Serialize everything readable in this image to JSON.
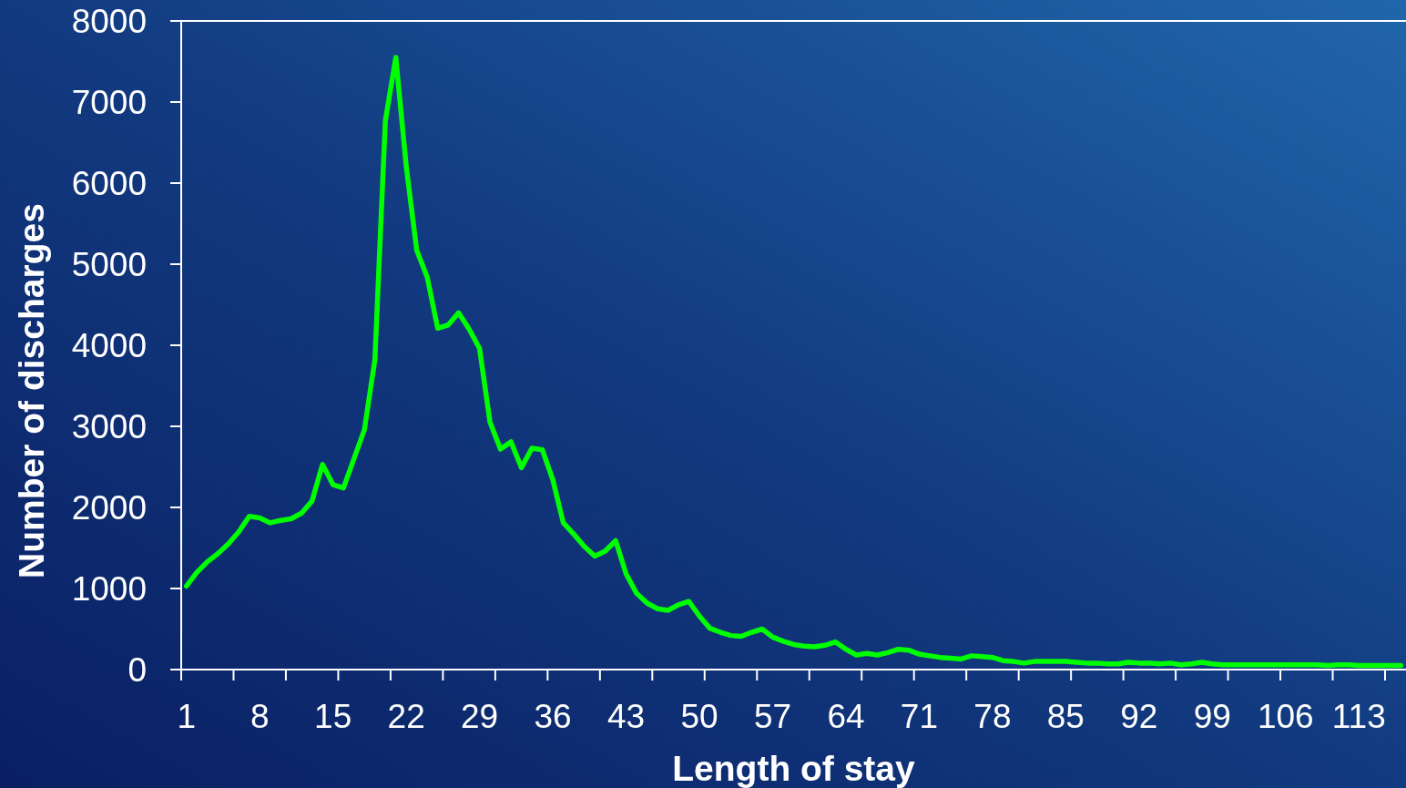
{
  "chart_data": {
    "type": "line",
    "xlabel": "Length of stay",
    "ylabel": "Number of discharges",
    "categories": [
      "1",
      null,
      null,
      null,
      null,
      null,
      null,
      "8",
      null,
      null,
      null,
      null,
      null,
      null,
      "15",
      null,
      null,
      null,
      null,
      null,
      null,
      "22",
      null,
      null,
      null,
      null,
      null,
      null,
      "29",
      null,
      null,
      null,
      null,
      null,
      null,
      "36",
      null,
      null,
      null,
      null,
      null,
      null,
      "43",
      null,
      null,
      null,
      null,
      null,
      null,
      "50",
      null,
      null,
      null,
      null,
      null,
      null,
      "57",
      null,
      null,
      null,
      null,
      null,
      null,
      "64",
      null,
      null,
      null,
      null,
      null,
      null,
      "71",
      null,
      null,
      null,
      null,
      null,
      null,
      "78",
      null,
      null,
      null,
      null,
      null,
      null,
      "85",
      null,
      null,
      null,
      null,
      null,
      null,
      "92",
      null,
      null,
      null,
      null,
      null,
      null,
      "99",
      null,
      null,
      null,
      null,
      null,
      null,
      "106",
      null,
      null,
      null,
      null,
      null,
      null,
      "113",
      null,
      null,
      null,
      null
    ],
    "series": [
      {
        "color": "#00ff00",
        "values": [
          1030,
          1200,
          1330,
          1430,
          1550,
          1700,
          1890,
          1870,
          1810,
          1840,
          1860,
          1930,
          2080,
          2530,
          2280,
          2240,
          2600,
          2960,
          3820,
          6770,
          7550,
          6200,
          5170,
          4840,
          4210,
          4250,
          4400,
          4200,
          3960,
          3050,
          2720,
          2810,
          2490,
          2730,
          2710,
          2340,
          1810,
          1670,
          1520,
          1400,
          1460,
          1590,
          1180,
          940,
          820,
          750,
          730,
          800,
          840,
          660,
          510,
          460,
          420,
          410,
          460,
          500,
          400,
          350,
          310,
          290,
          280,
          300,
          340,
          250,
          180,
          200,
          180,
          210,
          250,
          240,
          190,
          170,
          150,
          140,
          130,
          170,
          160,
          150,
          110,
          100,
          80,
          100,
          100,
          100,
          100,
          90,
          80,
          80,
          70,
          70,
          90,
          80,
          80,
          70,
          80,
          60,
          70,
          90,
          70,
          60,
          60,
          60,
          60,
          60,
          60,
          60,
          60,
          60,
          60,
          50,
          60,
          60,
          50,
          50,
          50,
          50,
          50
        ]
      }
    ],
    "ylim": [
      0,
      8000
    ],
    "yticks": [
      0,
      1000,
      2000,
      3000,
      4000,
      5000,
      6000,
      7000,
      8000
    ],
    "grid": false,
    "marker": "none",
    "line_style": "solid"
  }
}
